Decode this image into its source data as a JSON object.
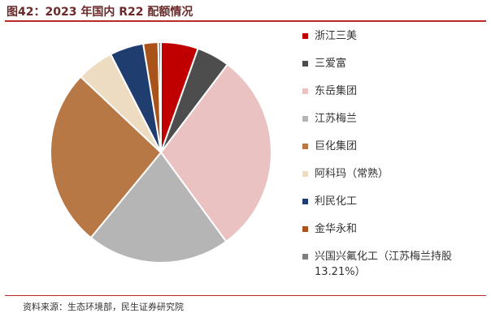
{
  "header": {
    "title": "图42：2023 年国内 R22 配额情况"
  },
  "footer": {
    "source": "资料来源：生态环境部，民生证券研究院"
  },
  "chart_data": {
    "type": "pie",
    "title": "",
    "series": [
      {
        "name": "浙江三美",
        "value": 5.5,
        "color": "#c00000"
      },
      {
        "name": "三爱富",
        "value": 4.9,
        "color": "#4d4d4d"
      },
      {
        "name": "东岳集团",
        "value": 30.0,
        "color": "#ebc2c2"
      },
      {
        "name": "江苏梅兰",
        "value": 21.2,
        "color": "#b5b5b5"
      },
      {
        "name": "巨化集团",
        "value": 26.4,
        "color": "#b87845"
      },
      {
        "name": "阿科玛（常熟）",
        "value": 5.5,
        "color": "#eddcc2"
      },
      {
        "name": "利民化工",
        "value": 5.0,
        "color": "#1f3d6e"
      },
      {
        "name": "金华永和",
        "value": 2.2,
        "color": "#a9521a"
      },
      {
        "name": "兴国兴氟化工（江苏梅兰持股13.21%）",
        "value": 0.4,
        "color": "#7f7f7f"
      }
    ],
    "legend_position": "right"
  }
}
